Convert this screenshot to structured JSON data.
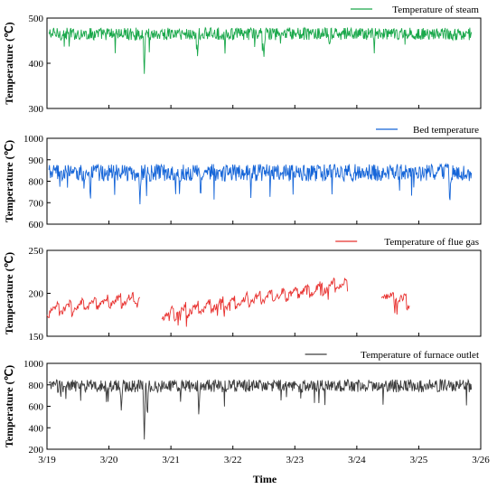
{
  "chart_data": {
    "type": "line",
    "x_axis": {
      "label": "Time",
      "ticks": [
        "3/19",
        "3/20",
        "3/21",
        "3/22",
        "3/23",
        "3/24",
        "3/25",
        "3/26"
      ],
      "range": [
        "3/19",
        "3/26"
      ]
    },
    "legend_placement": "top-right",
    "grid": false,
    "panels": [
      {
        "name": "steam",
        "ylabel": "Temperature (℃)",
        "ylim": [
          300,
          500
        ],
        "yticks": [
          300,
          400,
          500
        ],
        "series": [
          {
            "name": "Temperature of steam",
            "color": "#1aa84b"
          }
        ],
        "description_values": {
          "baseline": 465,
          "noise": 14,
          "dips": [
            {
              "day": 1.57,
              "value": 372
            },
            {
              "day": 2.43,
              "value": 415
            },
            {
              "day": 3.5,
              "value": 410
            },
            {
              "day": 4.56,
              "value": 436
            }
          ]
        }
      },
      {
        "name": "bed",
        "ylabel": "Temperature (℃)",
        "ylim": [
          600,
          1000
        ],
        "yticks": [
          600,
          700,
          800,
          900,
          1000
        ],
        "series": [
          {
            "name": "Bed temperature",
            "color": "#1565d8"
          }
        ],
        "description_values": {
          "baseline": 840,
          "noise": 40,
          "dips": [
            {
              "day": 0.7,
              "value": 700
            },
            {
              "day": 1.5,
              "value": 690
            },
            {
              "day": 2.48,
              "value": 720
            },
            {
              "day": 6.5,
              "value": 700
            }
          ]
        }
      },
      {
        "name": "flue",
        "ylabel": "Temperature (℃)",
        "ylim": [
          150,
          250
        ],
        "yticks": [
          150,
          200,
          250
        ],
        "series": [
          {
            "name": "Temperature of flue gas",
            "color": "#e8312f"
          }
        ],
        "description_values": {
          "segments": [
            {
              "start": 0.0,
              "end": 1.5,
              "from": 180,
              "to": 195
            },
            {
              "start": 1.85,
              "end": 4.85,
              "from": 175,
              "to": 212
            },
            {
              "start": 5.4,
              "end": 5.85,
              "from": 200,
              "to": 190
            }
          ]
        }
      },
      {
        "name": "furnace",
        "ylabel": "Temperature (℃)",
        "ylim": [
          200,
          1000
        ],
        "yticks": [
          200,
          400,
          600,
          800,
          1000
        ],
        "series": [
          {
            "name": "Temperature of furnace outlet",
            "color": "#3d3d3d"
          }
        ],
        "description_values": {
          "baseline": 790,
          "noise": 60,
          "dips": [
            {
              "day": 1.57,
              "value": 260
            },
            {
              "day": 1.62,
              "value": 480
            },
            {
              "day": 2.45,
              "value": 500
            },
            {
              "day": 1.2,
              "value": 550
            }
          ]
        }
      }
    ]
  }
}
